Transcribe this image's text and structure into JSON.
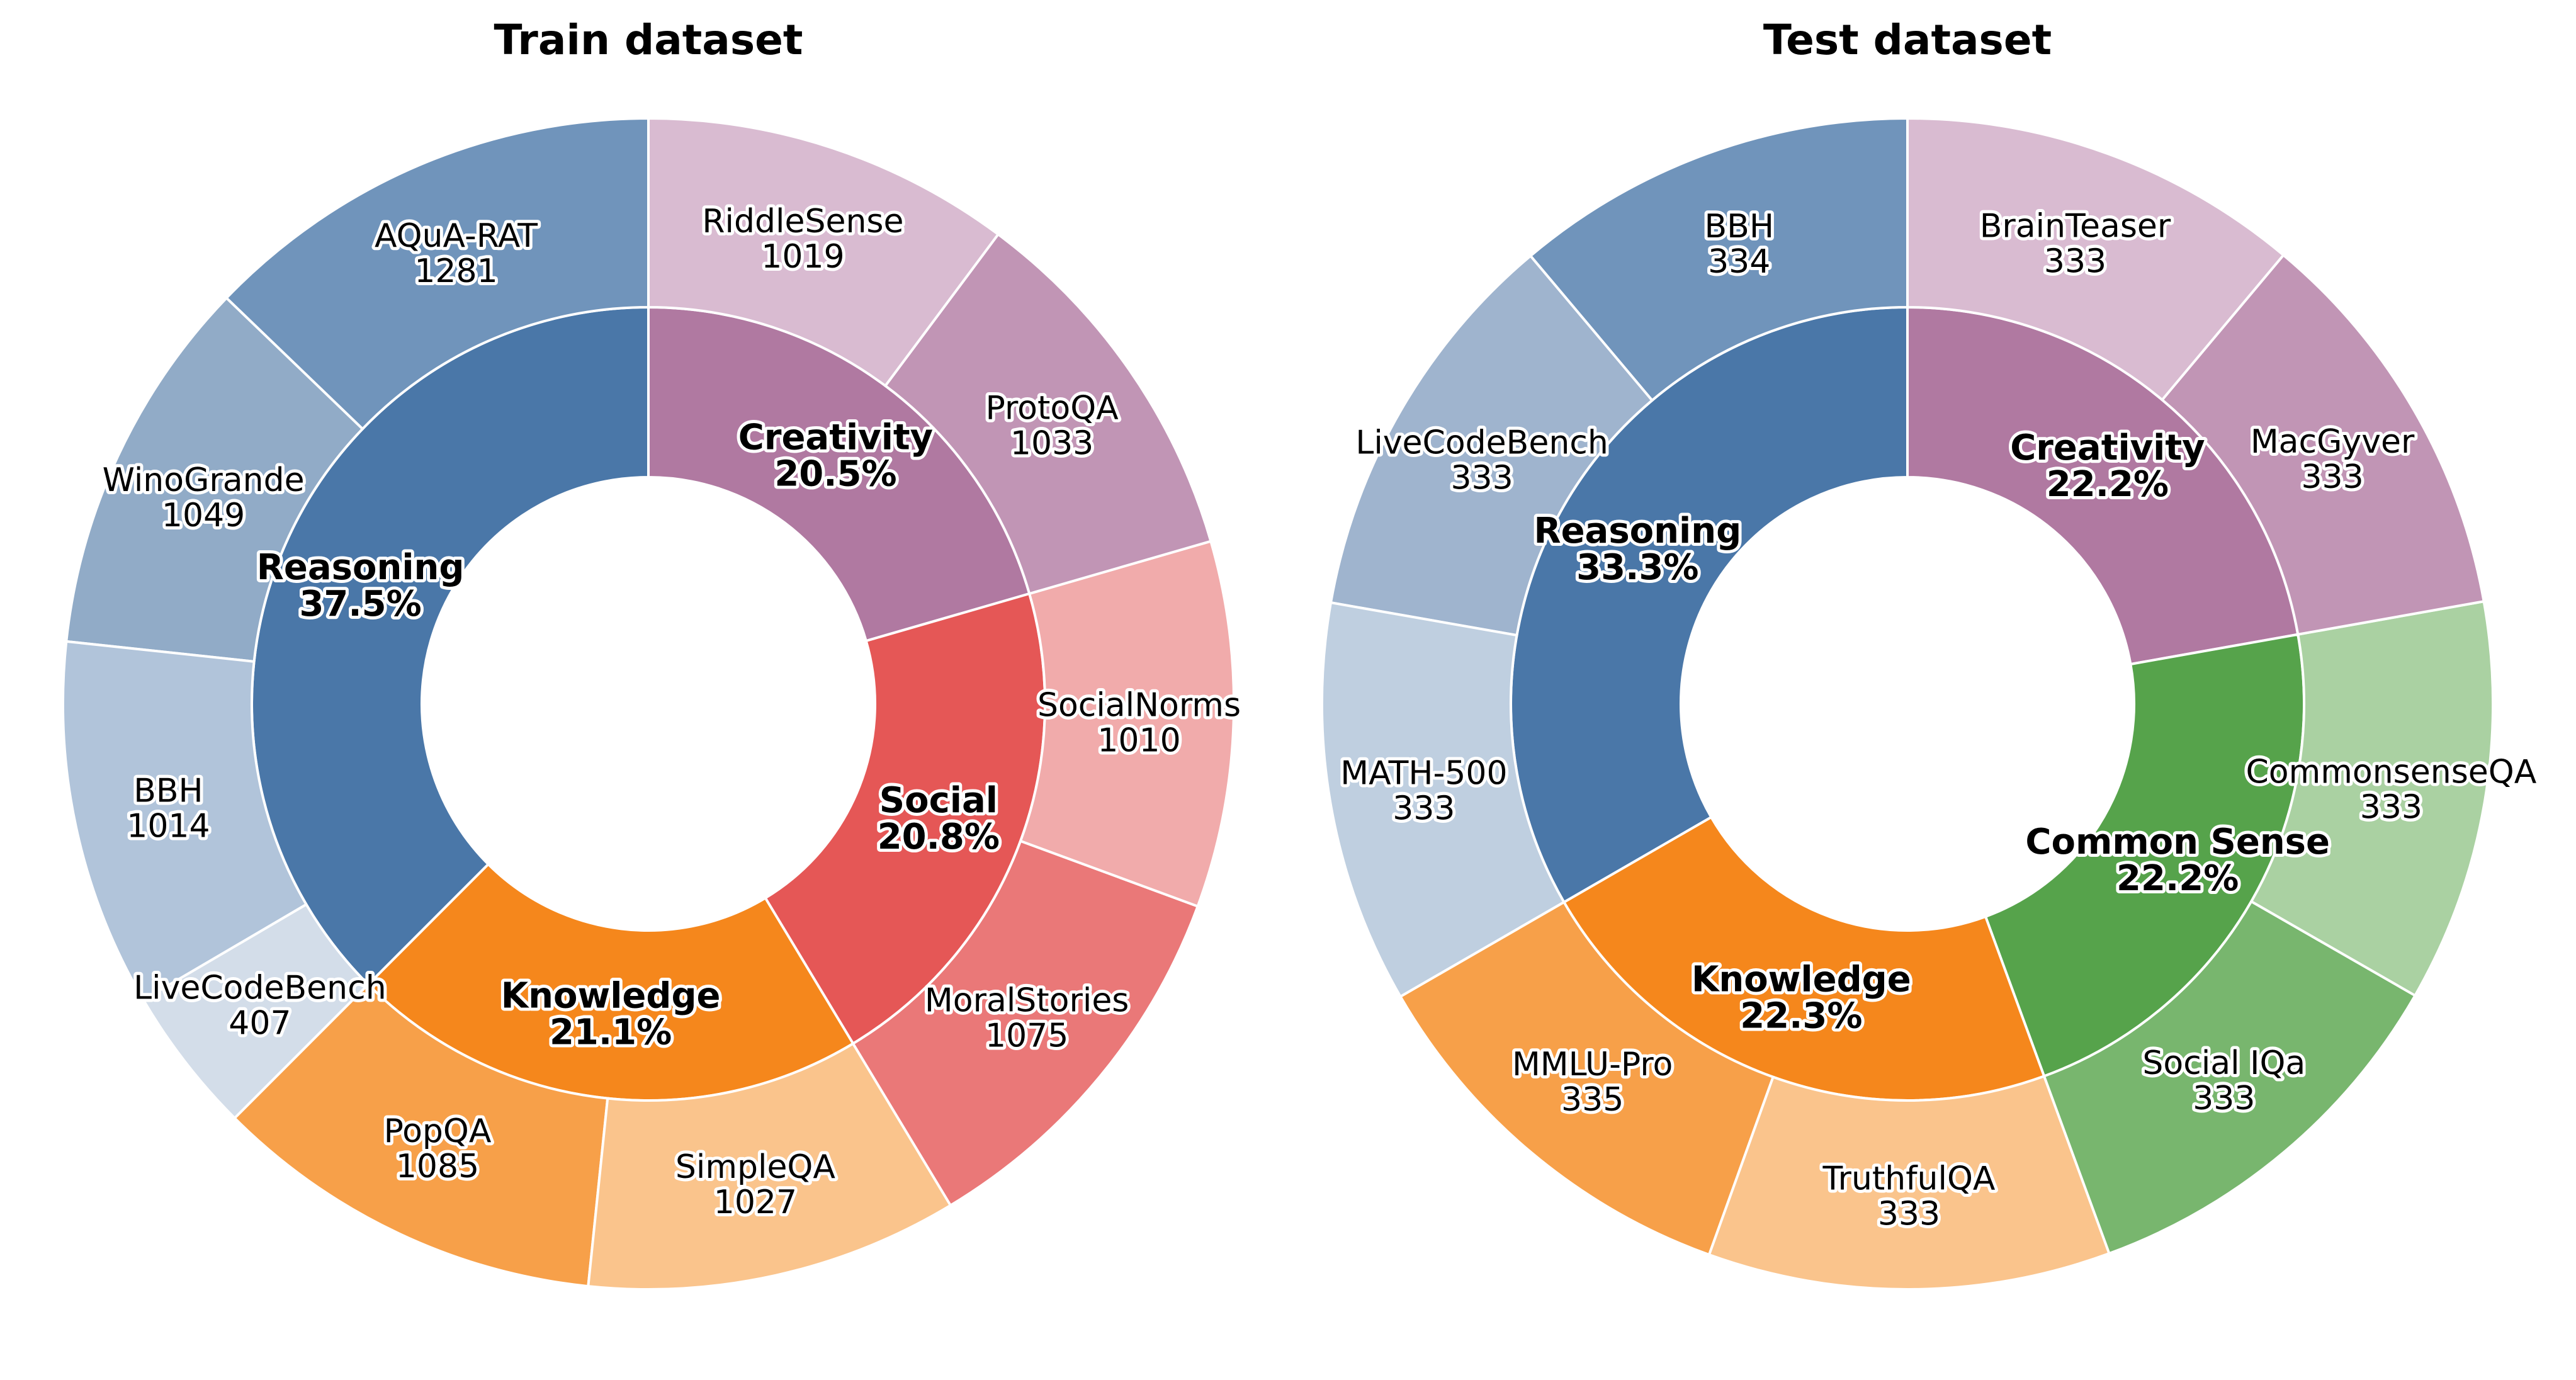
{
  "chart_data": [
    {
      "type": "pie",
      "subtype": "nested-donut",
      "title": "Train dataset",
      "categories": [
        {
          "name": "Reasoning",
          "percent_label": "37.5%",
          "color": "#4a77a8",
          "items": [
            {
              "name": "AQuA-RAT",
              "value": 1281,
              "color": "#7094bb"
            },
            {
              "name": "WinoGrande",
              "value": 1049,
              "color": "#91abc7"
            },
            {
              "name": "BBH",
              "value": 1014,
              "color": "#b1c4da"
            },
            {
              "name": "LiveCodeBench",
              "value": 407,
              "color": "#d3dde9"
            }
          ]
        },
        {
          "name": "Knowledge",
          "percent_label": "21.1%",
          "color": "#f5871c",
          "items": [
            {
              "name": "PopQA",
              "value": 1085,
              "color": "#f7a049"
            },
            {
              "name": "SimpleQA",
              "value": 1027,
              "color": "#fac48c"
            }
          ]
        },
        {
          "name": "Social",
          "percent_label": "20.8%",
          "color": "#e55756",
          "items": [
            {
              "name": "MoralStories",
              "value": 1075,
              "color": "#ea7878"
            },
            {
              "name": "SocialNorms",
              "value": 1010,
              "color": "#f1abab"
            }
          ]
        },
        {
          "name": "Creativity",
          "percent_label": "20.5%",
          "color": "#b079a1",
          "items": [
            {
              "name": "ProtoQA",
              "value": 1033,
              "color": "#c195b5"
            },
            {
              "name": "RiddleSense",
              "value": 1019,
              "color": "#d9bbd1"
            }
          ]
        }
      ]
    },
    {
      "type": "pie",
      "subtype": "nested-donut",
      "title": "Test dataset",
      "categories": [
        {
          "name": "Reasoning",
          "percent_label": "33.3%",
          "color": "#4a77a8",
          "items": [
            {
              "name": "BBH",
              "value": 334,
              "color": "#7094bb"
            },
            {
              "name": "LiveCodeBench",
              "value": 333,
              "color": "#9fb4ce"
            },
            {
              "name": "MATH-500",
              "value": 333,
              "color": "#bfcfe0"
            }
          ]
        },
        {
          "name": "Knowledge",
          "percent_label": "22.3%",
          "color": "#f5871c",
          "items": [
            {
              "name": "MMLU-Pro",
              "value": 335,
              "color": "#f7a049"
            },
            {
              "name": "TruthfulQA",
              "value": 333,
              "color": "#fac48c"
            }
          ]
        },
        {
          "name": "Common Sense",
          "percent_label": "22.2%",
          "color": "#56a34b",
          "items": [
            {
              "name": "Social IQa",
              "value": 333,
              "color": "#78b66e"
            },
            {
              "name": "CommonsenseQA",
              "value": 333,
              "color": "#aad1a2"
            }
          ]
        },
        {
          "name": "Creativity",
          "percent_label": "22.2%",
          "color": "#b079a1",
          "items": [
            {
              "name": "MacGyver",
              "value": 333,
              "color": "#c195b5"
            },
            {
              "name": "BrainTeaser",
              "value": 333,
              "color": "#d9bbd1"
            }
          ]
        }
      ]
    }
  ]
}
